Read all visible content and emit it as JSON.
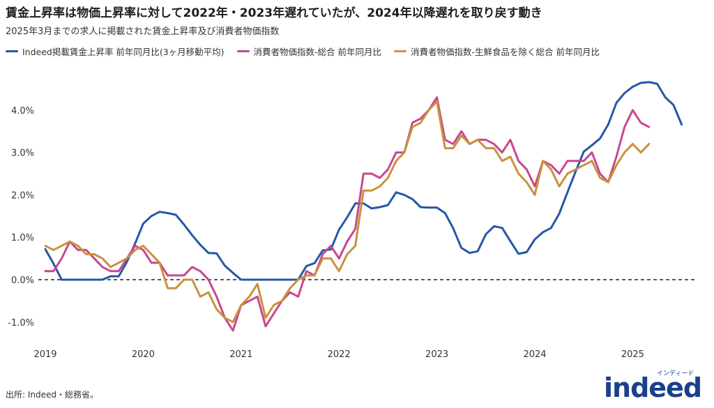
{
  "title": "賃金上昇率は物価上昇率に対して2022年・2023年遅れていたが、2024年以降遅れを取り戻す動き",
  "subtitle": "2025年3月までの求人に掲載された賃金上昇率及び消費者物価指数",
  "source": "出所: Indeed・総務省。",
  "logo": {
    "main": "indeed",
    "kana": "インディード"
  },
  "chart_data": {
    "type": "line",
    "title": "賃金上昇率は物価上昇率に対して2022年・2023年遅れていたが、2024年以降遅れを取り戻す動き",
    "subtitle": "2025年3月までの求人に掲載された賃金上昇率及び消費者物価指数",
    "x_start": "2019-01",
    "x_ticks": [
      "2019",
      "2020",
      "2021",
      "2022",
      "2023",
      "2024",
      "2025"
    ],
    "y_ticks": [
      "-1.0%",
      "0.0%",
      "1.0%",
      "2.0%",
      "3.0%",
      "4.0%"
    ],
    "ylim": [
      -1.5,
      4.8
    ],
    "grid": false,
    "zero_line": "dashed",
    "legend_position": "top",
    "series": [
      {
        "name": "Indeed掲載賃金上昇率 前年同月比(3ヶ月移動平均)",
        "color": "#2557a7",
        "values": [
          0.72,
          0.38,
          0.0,
          0.0,
          0.0,
          0.0,
          0.0,
          0.0,
          0.08,
          0.08,
          0.42,
          0.85,
          1.32,
          1.5,
          1.6,
          1.57,
          1.53,
          1.3,
          1.05,
          0.82,
          0.63,
          0.62,
          0.33,
          0.16,
          0.0,
          0.0,
          0.0,
          0.0,
          0.0,
          0.0,
          0.0,
          0.0,
          0.32,
          0.39,
          0.69,
          0.71,
          1.18,
          1.47,
          1.8,
          1.8,
          1.68,
          1.71,
          1.76,
          2.06,
          2.0,
          1.9,
          1.71,
          1.7,
          1.7,
          1.57,
          1.21,
          0.75,
          0.63,
          0.67,
          1.07,
          1.26,
          1.22,
          0.91,
          0.61,
          0.65,
          0.95,
          1.12,
          1.22,
          1.56,
          2.06,
          2.55,
          3.02,
          3.17,
          3.33,
          3.66,
          4.17,
          4.4,
          4.55,
          4.64,
          4.66,
          4.62,
          4.3,
          4.12,
          3.66
        ]
      },
      {
        "name": "消費者物価指数-総合 前年同月比",
        "color": "#c8478f",
        "values": [
          0.2,
          0.2,
          0.5,
          0.9,
          0.7,
          0.7,
          0.5,
          0.3,
          0.2,
          0.2,
          0.5,
          0.8,
          0.7,
          0.4,
          0.4,
          0.1,
          0.1,
          0.1,
          0.3,
          0.2,
          0.0,
          -0.4,
          -0.9,
          -1.2,
          -0.6,
          -0.5,
          -0.4,
          -1.1,
          -0.8,
          -0.5,
          -0.3,
          -0.4,
          0.2,
          0.1,
          0.6,
          0.8,
          0.5,
          0.9,
          1.2,
          2.5,
          2.5,
          2.4,
          2.6,
          3.0,
          3.0,
          3.7,
          3.8,
          4.0,
          4.3,
          3.3,
          3.2,
          3.5,
          3.2,
          3.3,
          3.3,
          3.2,
          3.0,
          3.3,
          2.8,
          2.6,
          2.2,
          2.8,
          2.7,
          2.5,
          2.8,
          2.8,
          2.8,
          3.0,
          2.5,
          2.3,
          2.9,
          3.6,
          4.0,
          3.7,
          3.6
        ]
      },
      {
        "name": "消費者物価指数-生鮮食品を除く総合 前年同月比",
        "color": "#c8923b",
        "values": [
          0.8,
          0.7,
          0.8,
          0.9,
          0.8,
          0.6,
          0.6,
          0.5,
          0.3,
          0.4,
          0.5,
          0.7,
          0.8,
          0.6,
          0.4,
          -0.2,
          -0.2,
          0.0,
          0.0,
          -0.4,
          -0.3,
          -0.7,
          -0.9,
          -1.0,
          -0.6,
          -0.4,
          -0.1,
          -0.9,
          -0.6,
          -0.5,
          -0.2,
          0.0,
          0.1,
          0.1,
          0.5,
          0.5,
          0.2,
          0.6,
          0.8,
          2.1,
          2.1,
          2.2,
          2.4,
          2.8,
          3.0,
          3.6,
          3.7,
          4.0,
          4.2,
          3.1,
          3.1,
          3.4,
          3.2,
          3.3,
          3.1,
          3.1,
          2.8,
          2.9,
          2.5,
          2.3,
          2.0,
          2.8,
          2.6,
          2.2,
          2.5,
          2.6,
          2.7,
          2.8,
          2.4,
          2.3,
          2.7,
          3.0,
          3.2,
          3.0,
          3.2
        ]
      }
    ]
  }
}
